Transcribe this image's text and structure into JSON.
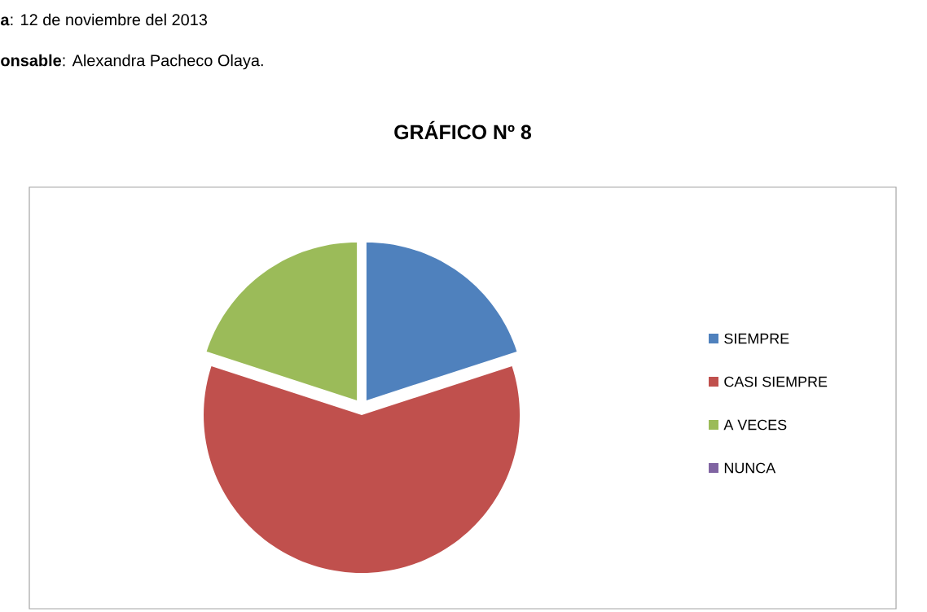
{
  "chart_data": {
    "type": "pie",
    "title": "GRÁFICO Nº 8",
    "annotations": [
      "**a**:   12 de noviembre del 2013",
      "**onsable**: Alexandra Pacheco Olaya."
    ],
    "categories": [
      "SIEMPRE",
      "CASI SIEMPRE",
      "A VECES",
      "NUNCA"
    ],
    "values": [
      20,
      60,
      20,
      0
    ],
    "colors": [
      "#4f81bd",
      "#c0504d",
      "#9bbb59",
      "#8064a2"
    ],
    "legend": "right"
  }
}
